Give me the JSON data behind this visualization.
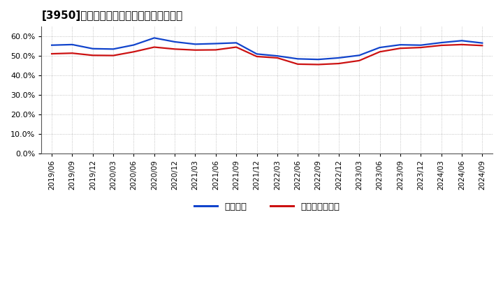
{
  "title": "[3950]　固定比率、固定長期適合率の推移",
  "background_color": "#ffffff",
  "plot_bg_color": "#ffffff",
  "grid_color": "#aaaaaa",
  "ylim": [
    0.0,
    0.65
  ],
  "yticks": [
    0.0,
    0.1,
    0.2,
    0.3,
    0.4,
    0.5,
    0.6
  ],
  "x_labels": [
    "2019/06",
    "2019/09",
    "2019/12",
    "2020/03",
    "2020/06",
    "2020/09",
    "2020/12",
    "2021/03",
    "2021/06",
    "2021/09",
    "2021/12",
    "2022/03",
    "2022/06",
    "2022/09",
    "2022/12",
    "2023/03",
    "2023/06",
    "2023/09",
    "2023/12",
    "2024/03",
    "2024/06",
    "2024/09"
  ],
  "fixed_ratio": [
    0.555,
    0.558,
    0.537,
    0.535,
    0.556,
    0.592,
    0.572,
    0.56,
    0.563,
    0.567,
    0.51,
    0.5,
    0.485,
    0.482,
    0.49,
    0.503,
    0.543,
    0.557,
    0.555,
    0.568,
    0.578,
    0.566
  ],
  "fixed_long_ratio": [
    0.511,
    0.514,
    0.503,
    0.502,
    0.521,
    0.545,
    0.535,
    0.53,
    0.531,
    0.545,
    0.497,
    0.49,
    0.458,
    0.456,
    0.461,
    0.476,
    0.521,
    0.539,
    0.543,
    0.554,
    0.558,
    0.553
  ],
  "line1_color": "#1144cc",
  "line2_color": "#cc1111",
  "line_width": 1.6,
  "legend_label1": "固定比率",
  "legend_label2": "固定長期適合率"
}
